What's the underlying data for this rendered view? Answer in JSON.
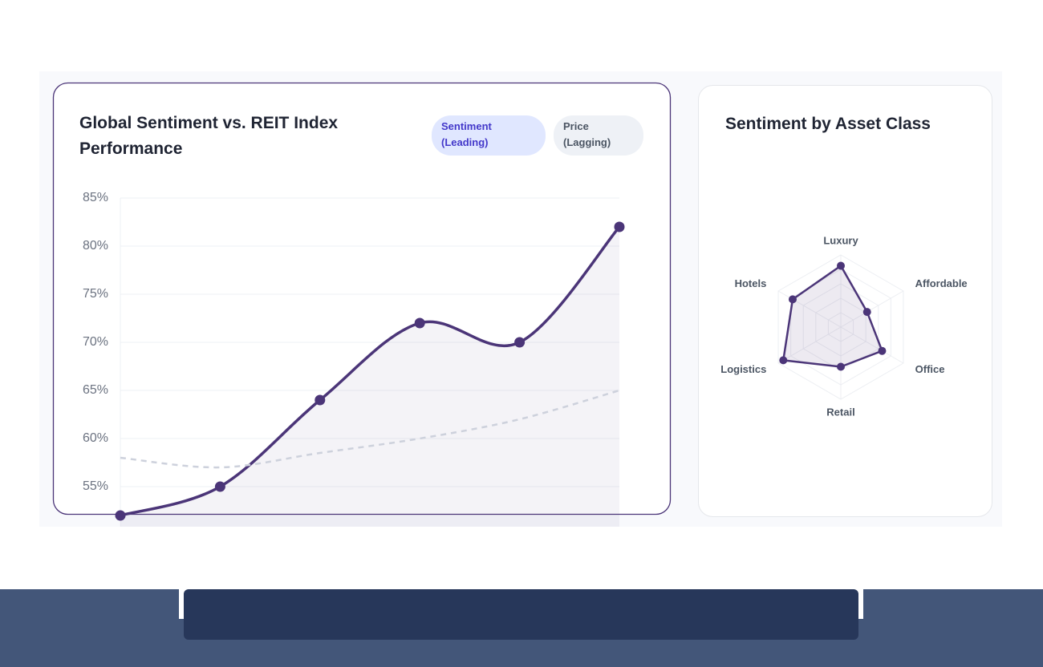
{
  "chart_data": [
    {
      "type": "line",
      "title": "Global Sentiment vs. REIT Index Performance",
      "categories": [
        null,
        null,
        null,
        null,
        null,
        null
      ],
      "series": [
        {
          "name": "Sentiment (Leading)",
          "color": "#4b3578",
          "values": [
            52,
            55,
            64,
            72,
            70,
            82
          ]
        },
        {
          "name": "Price (Lagging)",
          "color": "#cdd1dc",
          "values": [
            58,
            57,
            58.5,
            60,
            62,
            65
          ]
        }
      ],
      "ylim": [
        50,
        85
      ],
      "yticks": [
        {
          "value": 55,
          "label": "55%"
        },
        {
          "value": 60,
          "label": "60%"
        },
        {
          "value": 65,
          "label": "65%"
        },
        {
          "value": 70,
          "label": "70%"
        },
        {
          "value": 75,
          "label": "75%"
        },
        {
          "value": 80,
          "label": "80%"
        },
        {
          "value": 85,
          "label": "85%"
        }
      ],
      "grid": true
    },
    {
      "type": "radar",
      "title": "Sentiment by Asset Class",
      "categories": [
        "Luxury",
        "Affordable",
        "Office",
        "Retail",
        "Logistics",
        "Hotels"
      ],
      "values": [
        85,
        42,
        66,
        55,
        92,
        77
      ],
      "color": "#4b3578",
      "rlim": [
        0,
        100
      ],
      "rticks": [
        20,
        40,
        60,
        80,
        100
      ]
    }
  ]
}
